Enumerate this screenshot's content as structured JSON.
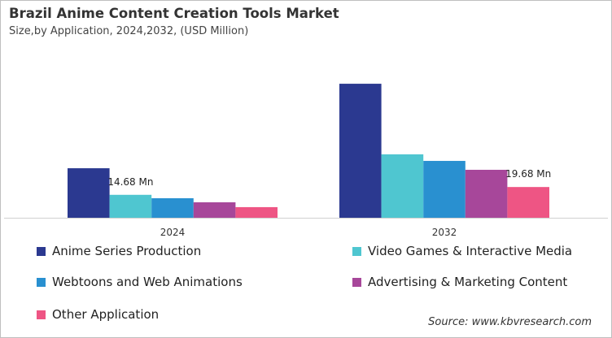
{
  "title": "Brazil Anime Content Creation Tools Market",
  "subtitle": "Size,by Application, 2024,2032, (USD Million)",
  "source": "Source: www.kbvresearch.com",
  "chart_data": {
    "type": "bar",
    "categories": [
      "2024",
      "2032"
    ],
    "ylim": [
      0,
      90
    ],
    "grid": false,
    "legend_position": "bottom",
    "series": [
      {
        "name": "Anime Series Production",
        "color": "#2b3990",
        "values": [
          31.7,
          85.8
        ]
      },
      {
        "name": "Video Games & Interactive Media",
        "color": "#4fc6d0",
        "values": [
          14.68,
          40.6
        ]
      },
      {
        "name": "Webtoons and Web Animations",
        "color": "#2990d0",
        "values": [
          12.5,
          36.4
        ]
      },
      {
        "name": "Advertising & Marketing Content",
        "color": "#a7479a",
        "values": [
          9.9,
          30.7
        ]
      },
      {
        "name": "Other Application",
        "color": "#ee5584",
        "values": [
          6.8,
          19.68
        ]
      }
    ],
    "annotations": [
      {
        "text": "14.68 Mn",
        "category": "2024",
        "series": 1
      },
      {
        "text": "19.68 Mn",
        "category": "2032",
        "series": 4
      }
    ]
  }
}
